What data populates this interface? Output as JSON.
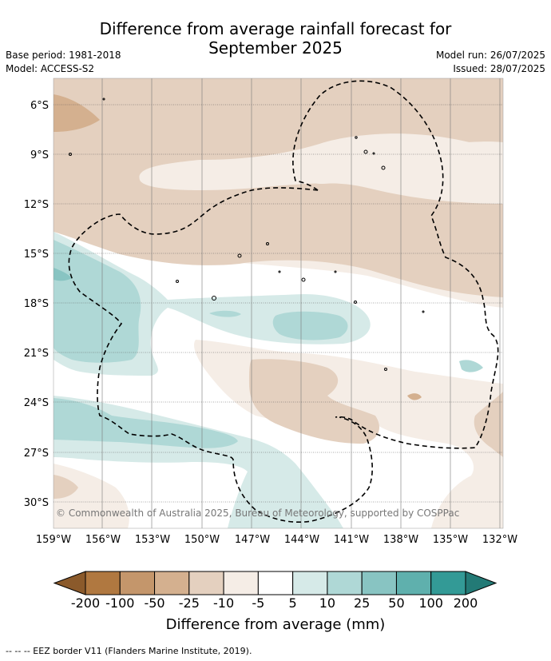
{
  "title_line1": "Difference from average rainfall forecast for",
  "title_line2": "September 2025",
  "base_period": "Base period: 1981-2018",
  "model": "Model: ACCESS-S2",
  "model_run": "Model run: 26/07/2025",
  "issued": "Issued: 28/07/2025",
  "copyright": "© Commonwealth of Australia 2025, Bureau of Meteorology, supported by COSPPac",
  "lat_labels": [
    "6°S",
    "9°S",
    "12°S",
    "15°S",
    "18°S",
    "21°S",
    "24°S",
    "27°S",
    "30°S"
  ],
  "lon_labels": [
    "159°W",
    "156°W",
    "153°W",
    "150°W",
    "147°W",
    "144°W",
    "141°W",
    "138°W",
    "135°W",
    "132°W"
  ],
  "colorbar": {
    "title": "Difference from average (mm)",
    "ticks": [
      "-200",
      "-100",
      "-50",
      "-25",
      "-10",
      "-5",
      "5",
      "10",
      "25",
      "50",
      "100",
      "200"
    ],
    "colors": [
      "#8b5a2b",
      "#b07840",
      "#c4966b",
      "#d4b08f",
      "#e4d0bf",
      "#f5ede6",
      "#ffffff",
      "#d6eae8",
      "#afd8d6",
      "#88c4c2",
      "#5fb0ad",
      "#339a96",
      "#237a76"
    ]
  },
  "footnote": "--  --  -- EEZ border V11 (Flanders Marine Institute, 2019)."
}
